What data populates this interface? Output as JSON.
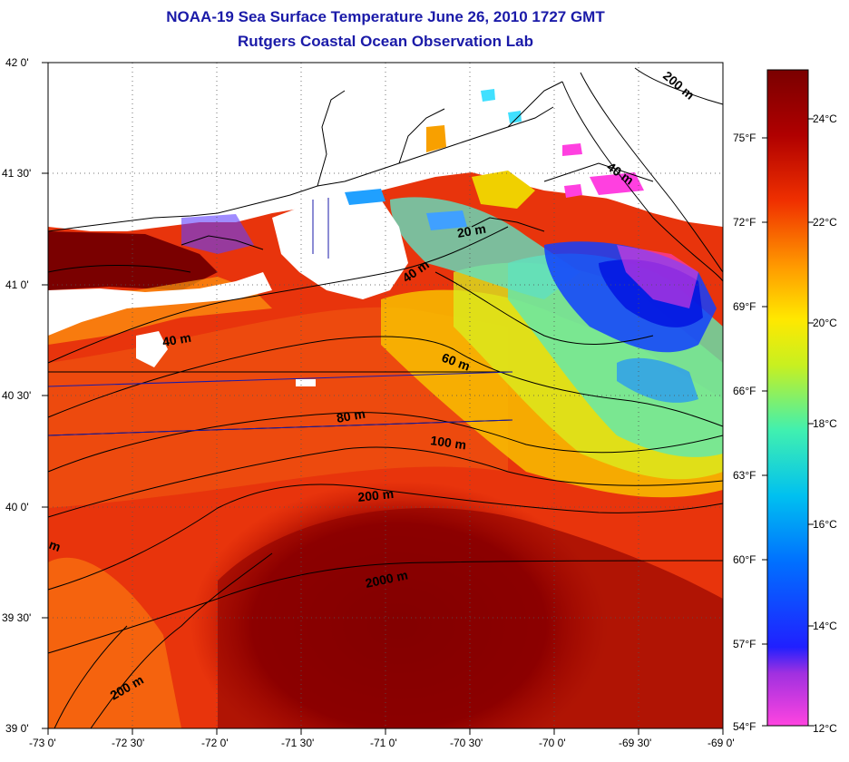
{
  "title": {
    "line1": "NOAA-19 Sea Surface Temperature June 26, 2010 1727 GMT",
    "line2": "Rutgers Coastal Ocean Observation Lab"
  },
  "axes": {
    "longitude_labels": [
      "-73 0'",
      "-72 30'",
      "-72 0'",
      "-71 30'",
      "-71 0'",
      "-70 30'",
      "-70 0'",
      "-69 30'",
      "-69 0'"
    ],
    "latitude_labels": [
      "42 0'",
      "41 30'",
      "41 0'",
      "40 30'",
      "40 0'",
      "39 30'",
      "39 0'"
    ]
  },
  "depth_labels": [
    "20 m",
    "40 m",
    "40 m",
    "40 m",
    "60 m",
    "80 m",
    "100 m",
    "200 m",
    "200 m",
    "200 m",
    "2000 m",
    "m"
  ],
  "colorbar": {
    "fahrenheit_labels": [
      "75°F",
      "72°F",
      "69°F",
      "66°F",
      "63°F",
      "60°F",
      "57°F",
      "54°F"
    ],
    "celsius_labels": [
      "24°C",
      "22°C",
      "20°C",
      "18°C",
      "16°C",
      "14°C",
      "12°C"
    ],
    "range_celsius": [
      12,
      25.5
    ]
  },
  "colors": {
    "title": "#1a1aa8",
    "warmest": "#7d0000",
    "warm": "#e02a0a",
    "mid": "#ffd800",
    "cool": "#39e0d0",
    "cold": "#0a2fff",
    "coldest": "#ff33dd"
  }
}
